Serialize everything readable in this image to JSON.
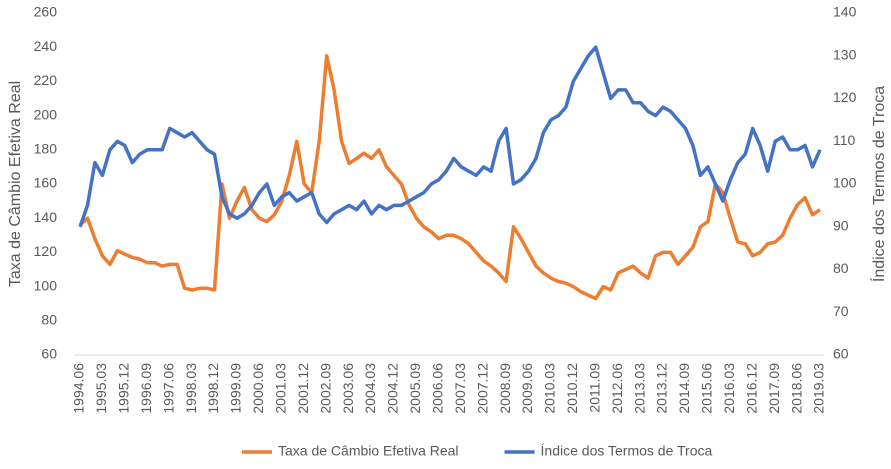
{
  "chart_data": {
    "type": "line",
    "ylabel": "Taxa de Câmbio Efetiva Real",
    "y2label": "Índice dos Termos de Troca",
    "categories": [
      "1994.06",
      null,
      null,
      "1995.03",
      null,
      null,
      "1995.12",
      null,
      null,
      "1996.09",
      null,
      null,
      "1997.06",
      null,
      null,
      "1998.03",
      null,
      null,
      "1998.12",
      null,
      null,
      "1999.09",
      null,
      null,
      "2000.06",
      null,
      null,
      "2001.03",
      null,
      null,
      "2001.12",
      null,
      null,
      "2002.09",
      null,
      null,
      "2003.06",
      null,
      null,
      "2004.03",
      null,
      null,
      "2004.12",
      null,
      null,
      "2005.09",
      null,
      null,
      "2006.06",
      null,
      null,
      "2007.03",
      null,
      null,
      "2007.12",
      null,
      null,
      "2008.09",
      null,
      null,
      "2009.06",
      null,
      null,
      "2010.03",
      null,
      null,
      "2010.12",
      null,
      null,
      "2011.09",
      null,
      null,
      "2012.06",
      null,
      null,
      "2013.03",
      null,
      null,
      "2013.12",
      null,
      null,
      "2014.09",
      null,
      null,
      "2015.06",
      null,
      null,
      "2016.03",
      null,
      null,
      "2016.12",
      null,
      null,
      "2017.09",
      null,
      null,
      "2018.06",
      null,
      null,
      "2019.03"
    ],
    "series": [
      {
        "name": "Taxa de Câmbio Efetiva Real",
        "color": "#ed7d31",
        "axis": "y",
        "values": [
          136,
          140,
          128,
          118,
          113,
          121,
          119,
          117,
          116,
          114,
          114,
          112,
          113,
          113,
          99,
          98,
          99,
          99,
          98,
          160,
          140,
          150,
          158,
          145,
          140,
          138,
          142,
          150,
          165,
          185,
          160,
          155,
          185,
          235,
          215,
          185,
          172,
          175,
          178,
          175,
          180,
          170,
          165,
          160,
          148,
          140,
          135,
          132,
          128,
          130,
          130,
          128,
          125,
          120,
          115,
          112,
          108,
          103,
          135,
          128,
          120,
          112,
          108,
          105,
          103,
          102,
          100,
          97,
          95,
          93,
          100,
          98,
          108,
          110,
          112,
          108,
          105,
          118,
          120,
          120,
          113,
          118,
          123,
          135,
          138,
          160,
          155,
          140,
          126,
          125,
          118,
          120,
          125,
          126,
          130,
          140,
          148,
          152,
          142,
          145
        ]
      },
      {
        "name": "Índice dos Termos de Troca",
        "color": "#4472c4",
        "axis": "y2",
        "values": [
          90,
          95,
          105,
          102,
          108,
          110,
          109,
          105,
          107,
          108,
          108,
          108,
          113,
          112,
          111,
          112,
          110,
          108,
          107,
          97,
          93,
          92,
          93,
          95,
          98,
          100,
          95,
          97,
          98,
          96,
          97,
          98,
          93,
          91,
          93,
          94,
          95,
          94,
          96,
          93,
          95,
          94,
          95,
          95,
          96,
          97,
          98,
          100,
          101,
          103,
          106,
          104,
          103,
          102,
          104,
          103,
          110,
          113,
          100,
          101,
          103,
          106,
          112,
          115,
          116,
          118,
          124,
          127,
          130,
          132,
          126,
          120,
          122,
          122,
          119,
          119,
          117,
          116,
          118,
          117,
          115,
          113,
          109,
          102,
          104,
          100,
          96,
          101,
          105,
          107,
          113,
          109,
          103,
          110,
          111,
          108,
          108,
          109,
          104,
          108
        ]
      }
    ],
    "ylim": [
      60,
      260
    ],
    "yticks": [
      60,
      80,
      100,
      120,
      140,
      160,
      180,
      200,
      220,
      240,
      260
    ],
    "y2lim": [
      60,
      140
    ],
    "y2ticks": [
      60,
      70,
      80,
      90,
      100,
      110,
      120,
      130,
      140
    ],
    "grid": false,
    "legend": "bottom"
  }
}
